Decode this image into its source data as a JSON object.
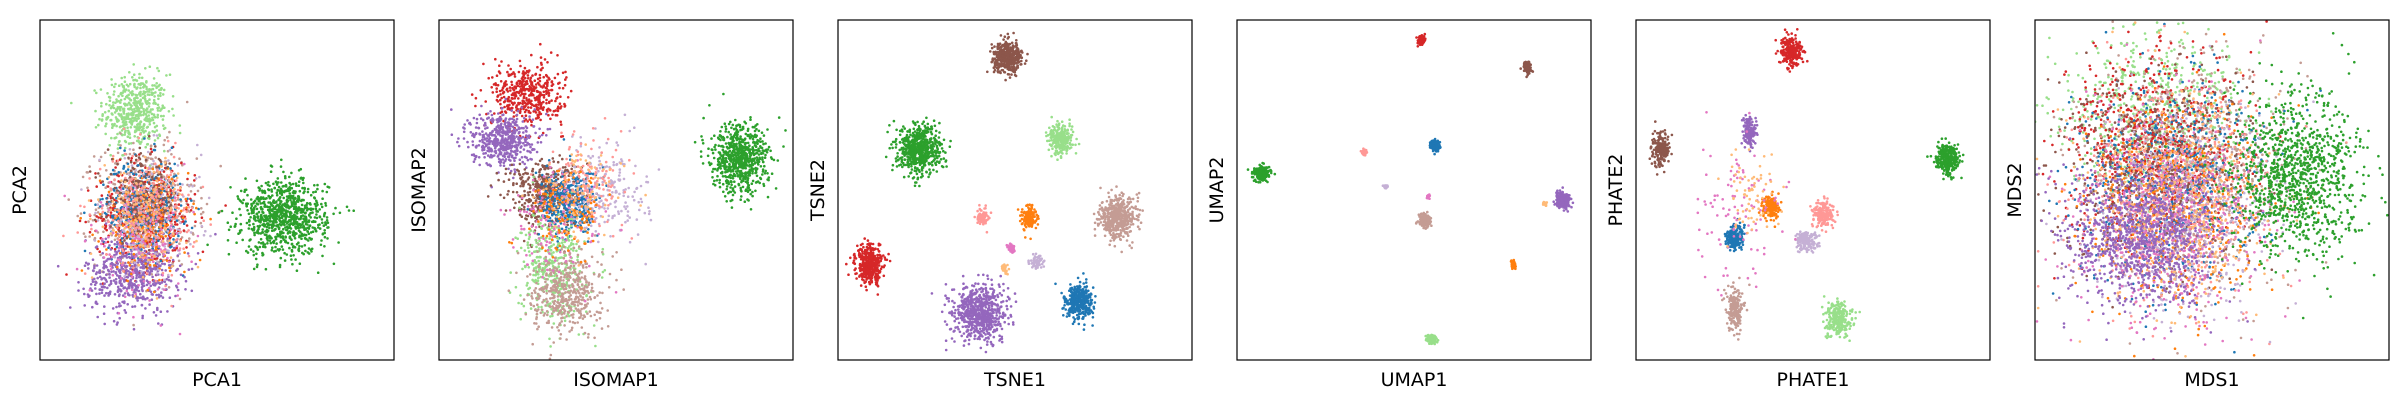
{
  "palette": {
    "blue": "#1f77b4",
    "orange": "#ff7f0e",
    "green": "#2ca02c",
    "light_green": "#98df8a",
    "red": "#d62728",
    "light_red": "#ff9896",
    "purple": "#9467bd",
    "light_purple": "#c5b0d5",
    "brown": "#8c564b",
    "tan": "#c49c94",
    "pink": "#e377c2",
    "light_orange": "#ffbb78"
  },
  "chart_data": [
    {
      "type": "scatter",
      "xlabel": "PCA1",
      "ylabel": "PCA2",
      "xlim": [
        0,
        1
      ],
      "ylim": [
        0,
        1
      ],
      "ticks": "none",
      "clusters": [
        {
          "color": "light_green",
          "cx": 0.27,
          "cy": 0.73,
          "sx": 0.045,
          "sy": 0.055,
          "n": 500
        },
        {
          "color": "tan",
          "cx": 0.3,
          "cy": 0.45,
          "sx": 0.07,
          "sy": 0.09,
          "n": 500
        },
        {
          "color": "red",
          "cx": 0.3,
          "cy": 0.42,
          "sx": 0.07,
          "sy": 0.08,
          "n": 450
        },
        {
          "color": "blue",
          "cx": 0.29,
          "cy": 0.45,
          "sx": 0.055,
          "sy": 0.07,
          "n": 380
        },
        {
          "color": "purple",
          "cx": 0.26,
          "cy": 0.25,
          "sx": 0.065,
          "sy": 0.055,
          "n": 550
        },
        {
          "color": "orange",
          "cx": 0.3,
          "cy": 0.4,
          "sx": 0.06,
          "sy": 0.08,
          "n": 200
        },
        {
          "color": "light_purple",
          "cx": 0.31,
          "cy": 0.43,
          "sx": 0.07,
          "sy": 0.09,
          "n": 200
        },
        {
          "color": "pink",
          "cx": 0.28,
          "cy": 0.35,
          "sx": 0.07,
          "sy": 0.08,
          "n": 150
        },
        {
          "color": "brown",
          "cx": 0.29,
          "cy": 0.48,
          "sx": 0.05,
          "sy": 0.06,
          "n": 200
        },
        {
          "color": "light_red",
          "cx": 0.3,
          "cy": 0.44,
          "sx": 0.07,
          "sy": 0.08,
          "n": 200
        },
        {
          "color": "light_orange",
          "cx": 0.29,
          "cy": 0.44,
          "sx": 0.06,
          "sy": 0.08,
          "n": 150
        },
        {
          "color": "green",
          "cx": 0.69,
          "cy": 0.42,
          "sx": 0.06,
          "sy": 0.055,
          "n": 900
        }
      ]
    },
    {
      "type": "scatter",
      "xlabel": "ISOMAP1",
      "ylabel": "ISOMAP2",
      "xlim": [
        0,
        1
      ],
      "ylim": [
        0,
        1
      ],
      "ticks": "none",
      "clusters": [
        {
          "color": "red",
          "cx": 0.25,
          "cy": 0.78,
          "sx": 0.05,
          "sy": 0.045,
          "n": 450
        },
        {
          "color": "purple",
          "cx": 0.18,
          "cy": 0.65,
          "sx": 0.045,
          "sy": 0.04,
          "n": 500
        },
        {
          "color": "brown",
          "cx": 0.3,
          "cy": 0.49,
          "sx": 0.055,
          "sy": 0.05,
          "n": 450
        },
        {
          "color": "blue",
          "cx": 0.37,
          "cy": 0.46,
          "sx": 0.04,
          "sy": 0.05,
          "n": 400
        },
        {
          "color": "light_green",
          "cx": 0.32,
          "cy": 0.27,
          "sx": 0.045,
          "sy": 0.08,
          "n": 400
        },
        {
          "color": "tan",
          "cx": 0.36,
          "cy": 0.2,
          "sx": 0.05,
          "sy": 0.06,
          "n": 450
        },
        {
          "color": "light_purple",
          "cx": 0.47,
          "cy": 0.5,
          "sx": 0.06,
          "sy": 0.07,
          "n": 200
        },
        {
          "color": "light_red",
          "cx": 0.42,
          "cy": 0.52,
          "sx": 0.06,
          "sy": 0.07,
          "n": 150
        },
        {
          "color": "pink",
          "cx": 0.33,
          "cy": 0.4,
          "sx": 0.07,
          "sy": 0.08,
          "n": 120
        },
        {
          "color": "orange",
          "cx": 0.36,
          "cy": 0.44,
          "sx": 0.05,
          "sy": 0.06,
          "n": 120
        },
        {
          "color": "light_orange",
          "cx": 0.4,
          "cy": 0.48,
          "sx": 0.06,
          "sy": 0.07,
          "n": 100
        },
        {
          "color": "green",
          "cx": 0.85,
          "cy": 0.59,
          "sx": 0.04,
          "sy": 0.05,
          "n": 700
        }
      ]
    },
    {
      "type": "scatter",
      "xlabel": "TSNE1",
      "ylabel": "TSNE2",
      "xlim": [
        0,
        1
      ],
      "ylim": [
        0,
        1
      ],
      "ticks": "none",
      "clusters": [
        {
          "color": "brown",
          "cx": 0.48,
          "cy": 0.89,
          "sx": 0.02,
          "sy": 0.022,
          "n": 450
        },
        {
          "color": "green",
          "cx": 0.23,
          "cy": 0.62,
          "sx": 0.03,
          "sy": 0.035,
          "n": 650
        },
        {
          "color": "light_green",
          "cx": 0.63,
          "cy": 0.65,
          "sx": 0.017,
          "sy": 0.022,
          "n": 250
        },
        {
          "color": "orange",
          "cx": 0.54,
          "cy": 0.42,
          "sx": 0.01,
          "sy": 0.016,
          "n": 160
        },
        {
          "color": "light_red",
          "cx": 0.41,
          "cy": 0.42,
          "sx": 0.008,
          "sy": 0.012,
          "n": 90
        },
        {
          "color": "tan",
          "cx": 0.79,
          "cy": 0.42,
          "sx": 0.025,
          "sy": 0.03,
          "n": 500
        },
        {
          "color": "pink",
          "cx": 0.49,
          "cy": 0.33,
          "sx": 0.006,
          "sy": 0.007,
          "n": 40
        },
        {
          "color": "light_purple",
          "cx": 0.56,
          "cy": 0.29,
          "sx": 0.009,
          "sy": 0.011,
          "n": 70
        },
        {
          "color": "light_orange",
          "cx": 0.47,
          "cy": 0.27,
          "sx": 0.005,
          "sy": 0.008,
          "n": 30
        },
        {
          "color": "red",
          "cx": 0.09,
          "cy": 0.28,
          "sx": 0.019,
          "sy": 0.028,
          "n": 400
        },
        {
          "color": "purple",
          "cx": 0.4,
          "cy": 0.14,
          "sx": 0.037,
          "sy": 0.04,
          "n": 700
        },
        {
          "color": "blue",
          "cx": 0.68,
          "cy": 0.17,
          "sx": 0.019,
          "sy": 0.026,
          "n": 400
        }
      ]
    },
    {
      "type": "scatter",
      "xlabel": "UMAP1",
      "ylabel": "UMAP2",
      "xlim": [
        0,
        1
      ],
      "ylim": [
        0,
        1
      ],
      "ticks": "none",
      "clusters": [
        {
          "color": "red",
          "cx": 0.52,
          "cy": 0.94,
          "sx": 0.005,
          "sy": 0.006,
          "n": 150
        },
        {
          "color": "brown",
          "cx": 0.82,
          "cy": 0.86,
          "sx": 0.005,
          "sy": 0.008,
          "n": 150
        },
        {
          "color": "blue",
          "cx": 0.56,
          "cy": 0.63,
          "sx": 0.006,
          "sy": 0.008,
          "n": 150
        },
        {
          "color": "light_red",
          "cx": 0.36,
          "cy": 0.61,
          "sx": 0.004,
          "sy": 0.004,
          "n": 40
        },
        {
          "color": "light_purple",
          "cx": 0.42,
          "cy": 0.51,
          "sx": 0.003,
          "sy": 0.003,
          "n": 25
        },
        {
          "color": "pink",
          "cx": 0.54,
          "cy": 0.48,
          "sx": 0.002,
          "sy": 0.004,
          "n": 20
        },
        {
          "color": "green",
          "cx": 0.07,
          "cy": 0.55,
          "sx": 0.011,
          "sy": 0.01,
          "n": 250
        },
        {
          "color": "tan",
          "cx": 0.53,
          "cy": 0.41,
          "sx": 0.008,
          "sy": 0.01,
          "n": 200
        },
        {
          "color": "purple",
          "cx": 0.92,
          "cy": 0.47,
          "sx": 0.011,
          "sy": 0.011,
          "n": 220
        },
        {
          "color": "light_orange",
          "cx": 0.87,
          "cy": 0.46,
          "sx": 0.003,
          "sy": 0.003,
          "n": 20
        },
        {
          "color": "orange",
          "cx": 0.78,
          "cy": 0.28,
          "sx": 0.003,
          "sy": 0.006,
          "n": 50
        },
        {
          "color": "light_green",
          "cx": 0.55,
          "cy": 0.06,
          "sx": 0.007,
          "sy": 0.006,
          "n": 120
        }
      ]
    },
    {
      "type": "scatter",
      "xlabel": "PHATE1",
      "ylabel": "PHATE2",
      "xlim": [
        0,
        1
      ],
      "ylim": [
        0,
        1
      ],
      "ticks": "none",
      "clusters": [
        {
          "color": "red",
          "cx": 0.44,
          "cy": 0.91,
          "sx": 0.016,
          "sy": 0.022,
          "n": 250
        },
        {
          "color": "green",
          "cx": 0.88,
          "cy": 0.59,
          "sx": 0.016,
          "sy": 0.02,
          "n": 320
        },
        {
          "color": "brown",
          "cx": 0.07,
          "cy": 0.62,
          "sx": 0.012,
          "sy": 0.025,
          "n": 200
        },
        {
          "color": "purple",
          "cx": 0.32,
          "cy": 0.67,
          "sx": 0.008,
          "sy": 0.022,
          "n": 170
        },
        {
          "color": "orange",
          "cx": 0.38,
          "cy": 0.45,
          "sx": 0.012,
          "sy": 0.016,
          "n": 170
        },
        {
          "color": "light_red",
          "cx": 0.53,
          "cy": 0.43,
          "sx": 0.015,
          "sy": 0.02,
          "n": 180
        },
        {
          "color": "light_purple",
          "cx": 0.48,
          "cy": 0.35,
          "sx": 0.016,
          "sy": 0.015,
          "n": 170
        },
        {
          "color": "blue",
          "cx": 0.28,
          "cy": 0.36,
          "sx": 0.013,
          "sy": 0.018,
          "n": 200
        },
        {
          "color": "pink",
          "cx": 0.3,
          "cy": 0.45,
          "sx": 0.06,
          "sy": 0.1,
          "n": 100
        },
        {
          "color": "light_orange",
          "cx": 0.33,
          "cy": 0.48,
          "sx": 0.04,
          "sy": 0.06,
          "n": 70
        },
        {
          "color": "tan",
          "cx": 0.28,
          "cy": 0.15,
          "sx": 0.012,
          "sy": 0.03,
          "n": 200
        },
        {
          "color": "light_green",
          "cx": 0.57,
          "cy": 0.12,
          "sx": 0.018,
          "sy": 0.025,
          "n": 250
        }
      ]
    },
    {
      "type": "scatter",
      "xlabel": "MDS1",
      "ylabel": "MDS2",
      "xlim": [
        0,
        1
      ],
      "ylim": [
        0,
        1
      ],
      "ticks": "none",
      "clusters": [
        {
          "color": "light_green",
          "cx": 0.33,
          "cy": 0.72,
          "sx": 0.13,
          "sy": 0.13,
          "n": 700
        },
        {
          "color": "tan",
          "cx": 0.44,
          "cy": 0.55,
          "sx": 0.14,
          "sy": 0.17,
          "n": 600
        },
        {
          "color": "red",
          "cx": 0.33,
          "cy": 0.62,
          "sx": 0.13,
          "sy": 0.15,
          "n": 650
        },
        {
          "color": "blue",
          "cx": 0.38,
          "cy": 0.52,
          "sx": 0.13,
          "sy": 0.15,
          "n": 600
        },
        {
          "color": "brown",
          "cx": 0.34,
          "cy": 0.55,
          "sx": 0.13,
          "sy": 0.15,
          "n": 600
        },
        {
          "color": "orange",
          "cx": 0.4,
          "cy": 0.45,
          "sx": 0.13,
          "sy": 0.16,
          "n": 500
        },
        {
          "color": "light_red",
          "cx": 0.4,
          "cy": 0.5,
          "sx": 0.13,
          "sy": 0.16,
          "n": 500
        },
        {
          "color": "light_purple",
          "cx": 0.42,
          "cy": 0.45,
          "sx": 0.13,
          "sy": 0.16,
          "n": 500
        },
        {
          "color": "pink",
          "cx": 0.38,
          "cy": 0.4,
          "sx": 0.13,
          "sy": 0.16,
          "n": 500
        },
        {
          "color": "light_orange",
          "cx": 0.4,
          "cy": 0.48,
          "sx": 0.13,
          "sy": 0.16,
          "n": 400
        },
        {
          "color": "purple",
          "cx": 0.3,
          "cy": 0.36,
          "sx": 0.11,
          "sy": 0.1,
          "n": 1000
        },
        {
          "color": "green",
          "cx": 0.74,
          "cy": 0.54,
          "sx": 0.09,
          "sy": 0.12,
          "n": 1100
        }
      ]
    }
  ]
}
